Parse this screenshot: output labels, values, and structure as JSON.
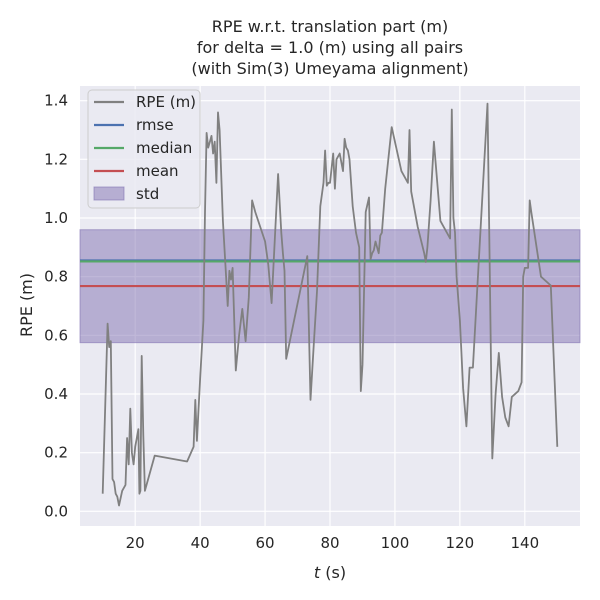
{
  "chart_data": {
    "type": "line",
    "title_lines": [
      "RPE w.r.t. translation part (m)",
      "for delta = 1.0 (m) using all pairs",
      "(with Sim(3) Umeyama alignment)"
    ],
    "xlabel_italic": "t",
    "xlabel_rest": " (s)",
    "ylabel": "RPE (m)",
    "xlim": [
      3,
      157
    ],
    "ylim": [
      -0.05,
      1.45
    ],
    "xticks": [
      20,
      40,
      60,
      80,
      100,
      120,
      140
    ],
    "xtick_labels": [
      "20",
      "40",
      "60",
      "80",
      "100",
      "120",
      "140"
    ],
    "yticks": [
      0.0,
      0.2,
      0.4,
      0.6,
      0.8,
      1.0,
      1.2,
      1.4
    ],
    "ytick_labels": [
      "0.0",
      "0.2",
      "0.4",
      "0.6",
      "0.8",
      "1.0",
      "1.2",
      "1.4"
    ],
    "grid": true,
    "legend_position": "top-left",
    "colors": {
      "background": "#eaeaf2",
      "grid": "#ffffff",
      "rpe": "#808080",
      "rmse": "#4c72b0",
      "median": "#55a868",
      "mean": "#c44e52",
      "std_fill": "#8172b2"
    },
    "stats": {
      "rmse": 0.855,
      "median": 0.852,
      "mean": 0.768,
      "std_low": 0.575,
      "std_high": 0.96
    },
    "legend": [
      {
        "label": "RPE (m)",
        "kind": "line",
        "color_key": "rpe"
      },
      {
        "label": "rmse",
        "kind": "line",
        "color_key": "rmse"
      },
      {
        "label": "median",
        "kind": "line",
        "color_key": "median"
      },
      {
        "label": "mean",
        "kind": "line",
        "color_key": "mean"
      },
      {
        "label": "std",
        "kind": "patch",
        "color_key": "std_fill"
      }
    ],
    "series": [
      {
        "name": "RPE (m)",
        "x": [
          10,
          11.5,
          12,
          12.5,
          13,
          13.5,
          14,
          14.5,
          15,
          16,
          17,
          17.5,
          18,
          18.5,
          19,
          19.5,
          20,
          21,
          21.3,
          21.6,
          22,
          22.5,
          23,
          26,
          36,
          38,
          38.5,
          39,
          40,
          41,
          41.5,
          42,
          42.5,
          43,
          43.5,
          44,
          44.5,
          45,
          45.5,
          46,
          47,
          48,
          48.5,
          49,
          49.5,
          50,
          51,
          52,
          53,
          54,
          55,
          56,
          57,
          60,
          61,
          62,
          64,
          65,
          65.5,
          66,
          66.5,
          73,
          74,
          75,
          76,
          77,
          78,
          78.5,
          79,
          79.5,
          80,
          81,
          81.5,
          82,
          83,
          84,
          84.5,
          85,
          85.5,
          86,
          87,
          88,
          89,
          89.5,
          90,
          91,
          92,
          92.5,
          93,
          93.5,
          94,
          95,
          95.5,
          96,
          97,
          99,
          102,
          104,
          104.5,
          105,
          107,
          109,
          109.5,
          110,
          111,
          112,
          114,
          117,
          117.5,
          118,
          118.5,
          119,
          120,
          121,
          122,
          123,
          124,
          128.5,
          130,
          131,
          132,
          133,
          134,
          135,
          136,
          138,
          139,
          139.5,
          140,
          141,
          141.5,
          142,
          145,
          148,
          150
        ],
        "y": [
          0.06,
          0.64,
          0.56,
          0.58,
          0.11,
          0.1,
          0.06,
          0.05,
          0.02,
          0.07,
          0.09,
          0.25,
          0.16,
          0.35,
          0.2,
          0.16,
          0.22,
          0.28,
          0.06,
          0.07,
          0.53,
          0.26,
          0.07,
          0.19,
          0.17,
          0.22,
          0.38,
          0.24,
          0.45,
          0.65,
          1.02,
          1.29,
          1.24,
          1.26,
          1.28,
          1.22,
          1.26,
          1.12,
          1.36,
          1.3,
          0.99,
          0.8,
          0.7,
          0.82,
          0.79,
          0.83,
          0.48,
          0.6,
          0.69,
          0.58,
          0.73,
          1.06,
          1.02,
          0.92,
          0.84,
          0.71,
          1.15,
          0.95,
          0.88,
          0.82,
          0.52,
          0.87,
          0.38,
          0.57,
          0.75,
          1.04,
          1.12,
          1.23,
          1.11,
          1.12,
          1.12,
          1.22,
          1.1,
          1.2,
          1.22,
          1.16,
          1.27,
          1.24,
          1.23,
          1.2,
          1.04,
          0.95,
          0.9,
          0.41,
          0.5,
          1.02,
          1.07,
          0.86,
          0.88,
          0.89,
          0.92,
          0.88,
          0.94,
          0.95,
          1.1,
          1.31,
          1.16,
          1.12,
          1.3,
          1.09,
          0.97,
          0.88,
          0.85,
          0.9,
          1.06,
          1.26,
          0.99,
          0.93,
          1.37,
          1.0,
          0.95,
          0.8,
          0.65,
          0.42,
          0.29,
          0.49,
          0.49,
          1.39,
          0.18,
          0.4,
          0.54,
          0.39,
          0.32,
          0.29,
          0.39,
          0.41,
          0.44,
          0.8,
          0.83,
          0.83,
          1.06,
          1.02,
          0.8,
          0.77,
          0.22
        ]
      }
    ]
  }
}
